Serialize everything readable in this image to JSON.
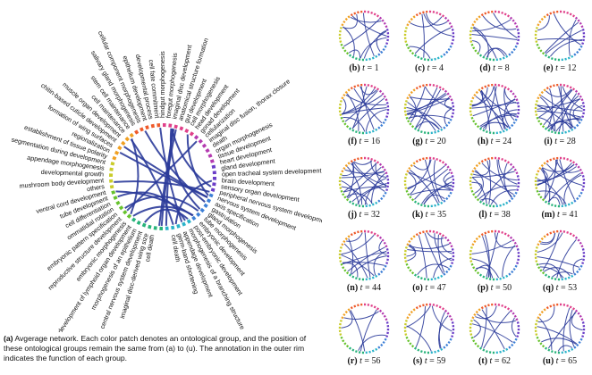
{
  "main_panel": {
    "labels": [
      "cell death",
      "imaginal disc-derived wing size",
      "central nervous system development",
      "morphogenesis of an epithelium",
      "development of lymphoid organ development",
      "embryonic morphogenesis",
      "reproductive structure development",
      "embryonic pattern specification",
      "ommatidial rotation",
      "cell differentiation",
      "tube development",
      "ventral cord development",
      "others",
      "mushroom body development",
      "developmental growth",
      "appendage morphogenesis",
      "segmentation during development",
      "establishment of tissue polarity",
      "regionalization",
      "formation of wing surfaces",
      "chitin-based cuticle development",
      "muscle organ development",
      "cell maintenance",
      "stem cell maintenance",
      "salivary gland morphogenesis",
      "cellular component morphogenesis",
      "epithelium development",
      "developmental process",
      "cell fate commitment",
      "hindgut morphogenesis",
      "foregut morphogenesis",
      "imaginal disc development",
      "anatomical structure formation",
      "gut development",
      "cell morphogenesis",
      "head development",
      "gonad development",
      "cellularization",
      "imaginal disc fusion, thorax closure",
      "death",
      "organ morphogenesis",
      "tissue development",
      "heart development",
      "gland development",
      "open tracheal system development",
      "brain development",
      "sensory organ development",
      "peripheral nervous system development",
      "nervous system development",
      "axis specification",
      "gastrulation",
      "gland morphogenesis",
      "tube morphogenesis",
      "embryonic development",
      "post-embryonic development",
      "morphogenesis of a branching structure",
      "appendage development",
      "germ-band shortening",
      "cell death"
    ]
  },
  "caption": {
    "tag": "(a)",
    "text": "Avgerage network. Each color patch denotes an ontological group, and the position of these ontological groups remain the same from (a) to (u). The annotation in the outer rim indicates the function of each group."
  },
  "panels": [
    {
      "tag": "(b)",
      "t": "1"
    },
    {
      "tag": "(c)",
      "t": "4"
    },
    {
      "tag": "(d)",
      "t": "8"
    },
    {
      "tag": "(e)",
      "t": "12"
    },
    {
      "tag": "(f)",
      "t": "16"
    },
    {
      "tag": "(g)",
      "t": "20"
    },
    {
      "tag": "(h)",
      "t": "24"
    },
    {
      "tag": "(i)",
      "t": "28"
    },
    {
      "tag": "(j)",
      "t": "32"
    },
    {
      "tag": "(k)",
      "t": "35"
    },
    {
      "tag": "(l)",
      "t": "38"
    },
    {
      "tag": "(m)",
      "t": "41"
    },
    {
      "tag": "(n)",
      "t": "44"
    },
    {
      "tag": "(o)",
      "t": "47"
    },
    {
      "tag": "(p)",
      "t": "50"
    },
    {
      "tag": "(q)",
      "t": "53"
    },
    {
      "tag": "(r)",
      "t": "56"
    },
    {
      "tag": "(s)",
      "t": "59"
    },
    {
      "tag": "(t)",
      "t": "62"
    },
    {
      "tag": "(u)",
      "t": "65"
    }
  ],
  "t_symbol": "t",
  "equals": "=",
  "edge_color": "#2b3b9a",
  "group_colors": [
    "#e0408a",
    "#b43bb0",
    "#6a3dc7",
    "#3d7fd6",
    "#2ab3c9",
    "#27b37a",
    "#66c22d",
    "#c9cc2a",
    "#f0a023",
    "#ee5a2a"
  ]
}
